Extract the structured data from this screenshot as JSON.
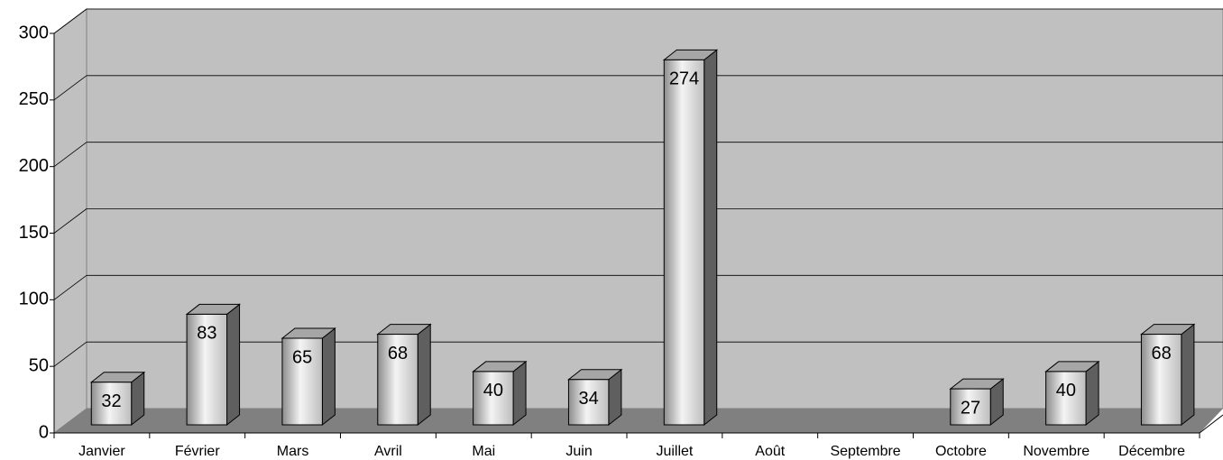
{
  "chart_data": {
    "type": "bar",
    "categories": [
      "Janvier",
      "Février",
      "Mars",
      "Avril",
      "Mai",
      "Juin",
      "Juillet",
      "Août",
      "Septembre",
      "Octobre",
      "Novembre",
      "Décembre"
    ],
    "values": [
      32,
      83,
      65,
      68,
      40,
      34,
      274,
      null,
      null,
      27,
      40,
      68
    ],
    "ylim": [
      0,
      300
    ],
    "yticks": [
      0,
      50,
      100,
      150,
      200,
      250,
      300
    ],
    "grid": true,
    "color": "#c8c8c8"
  }
}
